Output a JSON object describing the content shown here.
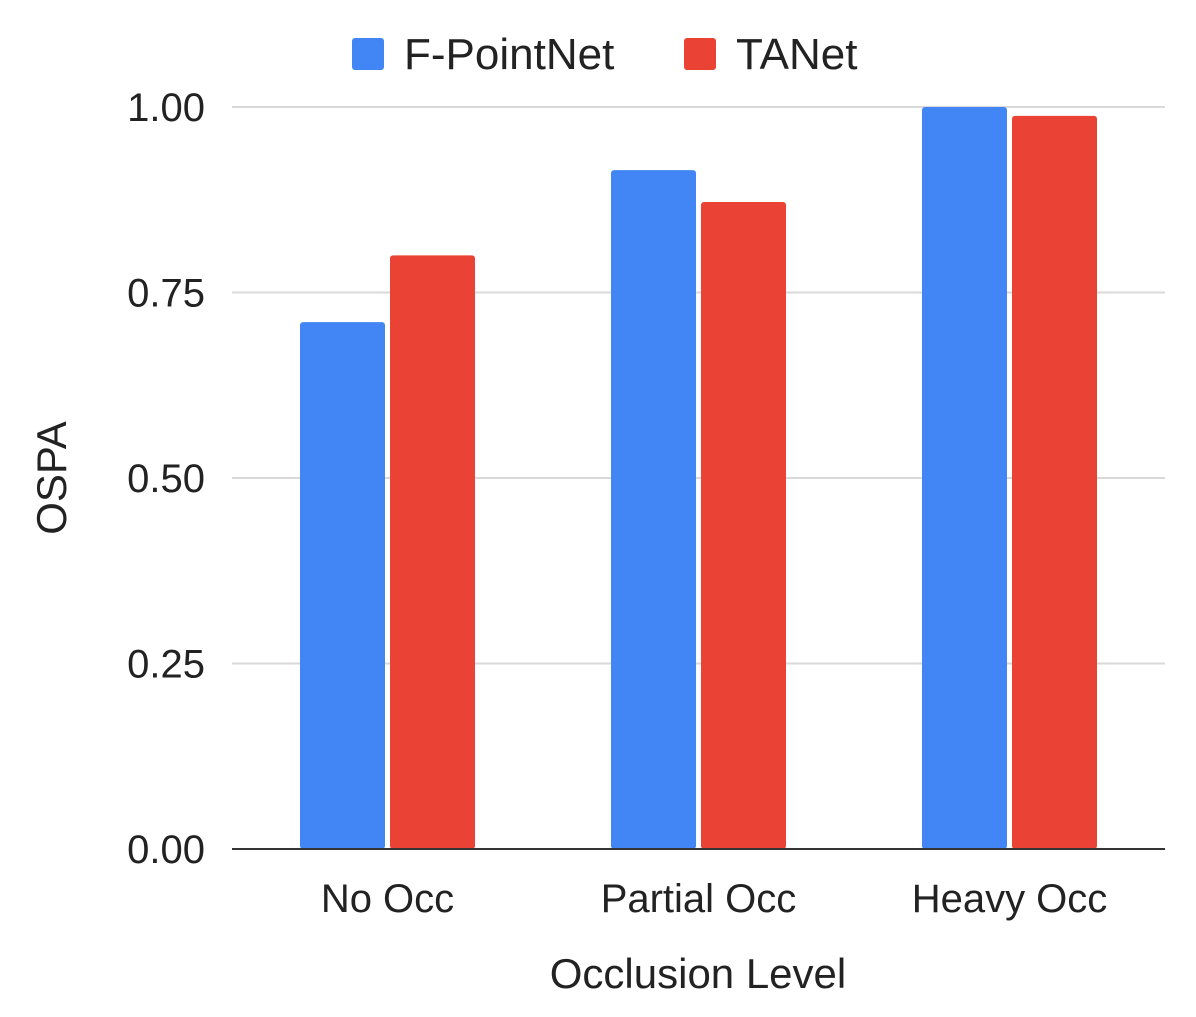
{
  "chart_data": {
    "type": "bar",
    "title": "",
    "xlabel": "Occlusion Level",
    "ylabel": "OSPA",
    "categories": [
      "No Occ",
      "Partial Occ",
      "Heavy Occ"
    ],
    "series": [
      {
        "name": "F-PointNet",
        "color": "#4285f4",
        "values": [
          0.71,
          0.915,
          1.0
        ]
      },
      {
        "name": "TANet",
        "color": "#ea4335",
        "values": [
          0.8,
          0.872,
          0.988
        ]
      }
    ],
    "ylim": [
      0,
      1.0
    ],
    "yticks": [
      "0.00",
      "0.25",
      "0.50",
      "0.75",
      "1.00"
    ],
    "ytick_values": [
      0,
      0.25,
      0.5,
      0.75,
      1.0
    ],
    "grid": true,
    "legend_position": "top"
  }
}
